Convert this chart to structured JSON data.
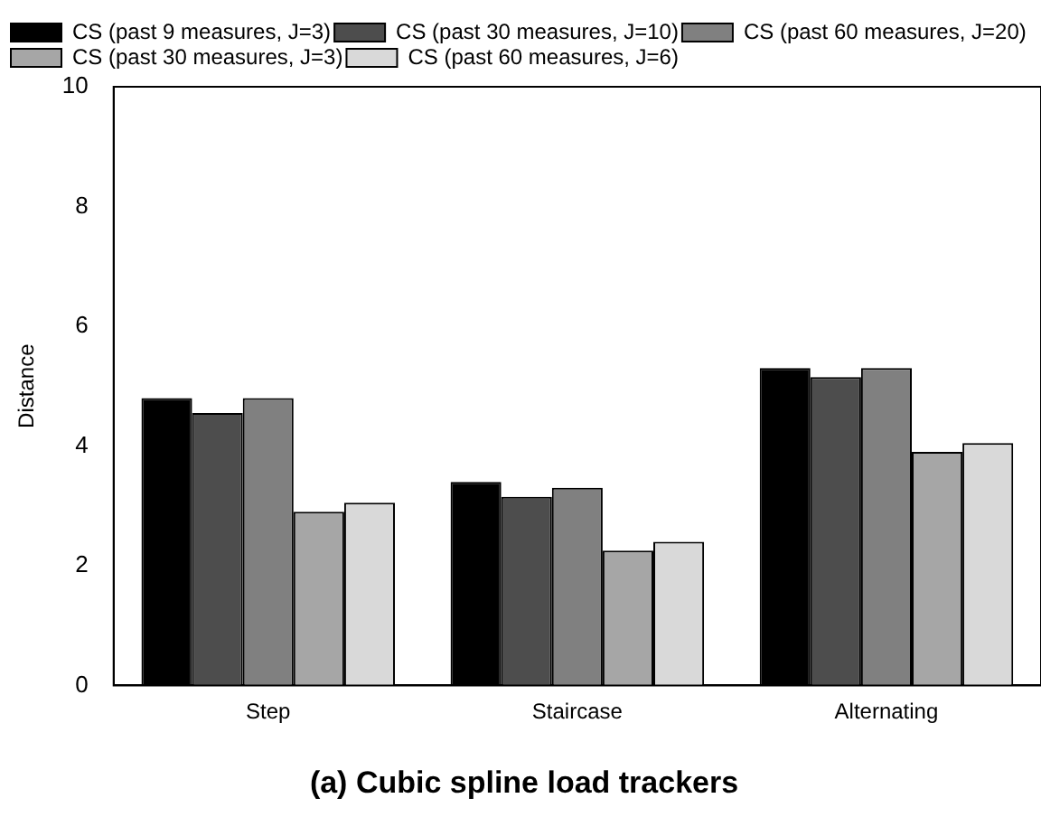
{
  "chart_data": {
    "type": "bar",
    "title": "(a) Cubic spline load trackers",
    "ylabel": "Distance",
    "categories": [
      "Step",
      "Staircase",
      "Alternating"
    ],
    "series": [
      {
        "name": "CS (past 9 measures, J=3)",
        "color": "#000000",
        "values": [
          4.8,
          3.4,
          5.3
        ]
      },
      {
        "name": "CS (past 30 measures, J=10)",
        "color": "#4d4d4d",
        "values": [
          4.55,
          3.15,
          5.15
        ]
      },
      {
        "name": "CS (past 60 measures, J=20)",
        "color": "#808080",
        "values": [
          4.8,
          3.3,
          5.3
        ]
      },
      {
        "name": "CS (past 30 measures, J=3)",
        "color": "#a6a6a6",
        "values": [
          2.9,
          2.25,
          3.9
        ]
      },
      {
        "name": "CS (past 60 measures, J=6)",
        "color": "#d9d9d9",
        "values": [
          3.05,
          2.4,
          4.05
        ]
      }
    ],
    "ylim": [
      0,
      10
    ],
    "yticks": [
      0,
      2,
      4,
      6,
      8,
      10
    ],
    "grid": false,
    "legend": "top left"
  }
}
